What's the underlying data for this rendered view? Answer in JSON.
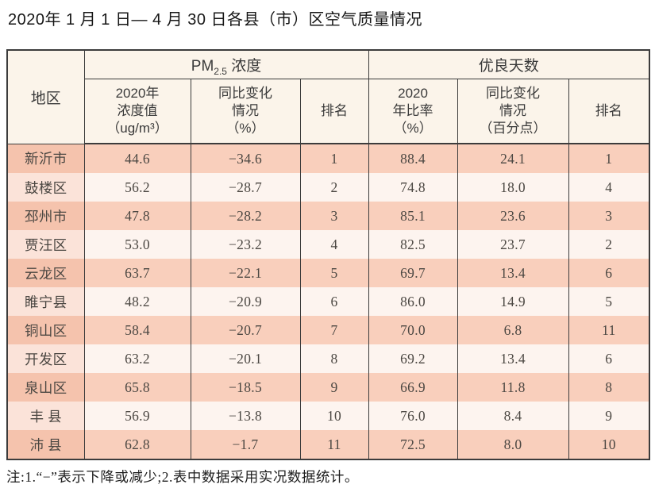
{
  "title": "2020年 1 月 1 日— 4 月 30 日各县（市）区空气质量情况",
  "table": {
    "corner_header": "地区",
    "group_pm": {
      "prefix": "PM",
      "sub": "2.5",
      "suffix": " 浓度"
    },
    "group_days": "优良天数",
    "sub_headers": [
      "2020年\n浓度值\n（ug/m³）",
      "同比变化\n情况\n（%）",
      "排名",
      "2020\n年比率\n（%）",
      "同比变化\n情况\n（百分点）",
      "排名"
    ],
    "rows": [
      [
        "新沂市",
        "44.6",
        "−34.6",
        "1",
        "88.4",
        "24.1",
        "1"
      ],
      [
        "鼓楼区",
        "56.2",
        "−28.7",
        "2",
        "74.8",
        "18.0",
        "4"
      ],
      [
        "邳州市",
        "47.8",
        "−28.2",
        "3",
        "85.1",
        "23.6",
        "3"
      ],
      [
        "贾汪区",
        "53.0",
        "−23.2",
        "4",
        "82.5",
        "23.7",
        "2"
      ],
      [
        "云龙区",
        "63.7",
        "−22.1",
        "5",
        "69.7",
        "13.4",
        "6"
      ],
      [
        "睢宁县",
        "48.2",
        "−20.9",
        "6",
        "86.0",
        "14.9",
        "5"
      ],
      [
        "铜山区",
        "58.4",
        "−20.7",
        "7",
        "70.0",
        "6.8",
        "11"
      ],
      [
        "开发区",
        "63.2",
        "−20.1",
        "8",
        "69.2",
        "13.4",
        "6"
      ],
      [
        "泉山区",
        "65.8",
        "−18.5",
        "9",
        "66.9",
        "11.8",
        "8"
      ],
      [
        "丰 县",
        "56.9",
        "−13.8",
        "10",
        "76.0",
        "8.4",
        "9"
      ],
      [
        "沛 县",
        "62.8",
        "−1.7",
        "11",
        "72.5",
        "8.0",
        "10"
      ]
    ]
  },
  "note": "注:1.“−”表示下降或减少;2.表中数据采用实况数据统计。",
  "colors": {
    "header_bg": "#fbf4ea",
    "row_odd": "#f9cfbc",
    "row_odd_region": "#f5c3ad",
    "row_even": "#fdf4ef",
    "row_even_region": "#fbe3d9",
    "border": "#3c3c3c"
  }
}
